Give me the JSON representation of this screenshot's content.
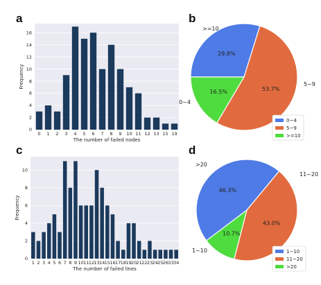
{
  "panels": {
    "a": "a",
    "b": "b",
    "c": "c",
    "d": "d"
  },
  "chart_data": [
    {
      "panel": "a",
      "type": "bar",
      "categories": [
        "0",
        "1",
        "2",
        "3",
        "4",
        "5",
        "6",
        "7",
        "8",
        "9",
        "10",
        "11",
        "12",
        "13",
        "15",
        "19"
      ],
      "values": [
        3,
        4,
        3,
        9,
        17,
        15,
        16,
        10,
        14,
        10,
        7,
        6,
        2,
        2,
        1,
        1
      ],
      "xlabel": "The number of failed nodes",
      "ylabel": "Frequency",
      "yticks": [
        0,
        2,
        4,
        6,
        8,
        10,
        12,
        14,
        16
      ],
      "ylim": [
        0,
        17.5
      ],
      "grid": "horizontal",
      "color": "#1b3a5c"
    },
    {
      "panel": "b",
      "type": "pie",
      "labels": [
        "0~4",
        "5~9",
        ">=10"
      ],
      "values": [
        29.8,
        53.7,
        16.5
      ],
      "pct_labels": [
        "29.8%",
        "53.7%",
        "16.5%"
      ],
      "colors": [
        "#4f7be6",
        "#e16b3e",
        "#4fdc3e"
      ],
      "legend": {
        "entries": [
          "0~4",
          "5~9",
          ">=10"
        ],
        "placement": "bottom-right"
      }
    },
    {
      "panel": "c",
      "type": "bar",
      "categories": [
        "1",
        "2",
        "3",
        "4",
        "5",
        "6",
        "7",
        "8",
        "9",
        "10",
        "11",
        "12",
        "13",
        "14",
        "15",
        "16",
        "17",
        "18",
        "19",
        "20",
        "21",
        "22",
        "23",
        "24",
        "25",
        "26",
        "33",
        "34"
      ],
      "values": [
        3,
        2,
        3,
        4,
        5,
        3,
        11,
        8,
        11,
        6,
        6,
        6,
        10,
        8,
        6,
        5,
        2,
        1,
        4,
        4,
        2,
        1,
        2,
        1,
        1,
        1,
        1,
        1
      ],
      "xlabel": "The number of failed lines",
      "ylabel": "Frequency",
      "yticks": [
        0,
        2,
        4,
        6,
        8,
        10
      ],
      "ylim": [
        0,
        11.5
      ],
      "grid": "horizontal",
      "color": "#1b3a5c"
    },
    {
      "panel": "d",
      "type": "pie",
      "labels": [
        "1~10",
        "11~20",
        ">20"
      ],
      "values": [
        46.3,
        43.0,
        10.7
      ],
      "pct_labels": [
        "46.3%",
        "43.0%",
        "10.7%"
      ],
      "colors": [
        "#4f7be6",
        "#e16b3e",
        "#4fdc3e"
      ],
      "legend": {
        "entries": [
          "1~10",
          "11~20",
          ">20"
        ],
        "placement": "bottom-right"
      }
    }
  ]
}
